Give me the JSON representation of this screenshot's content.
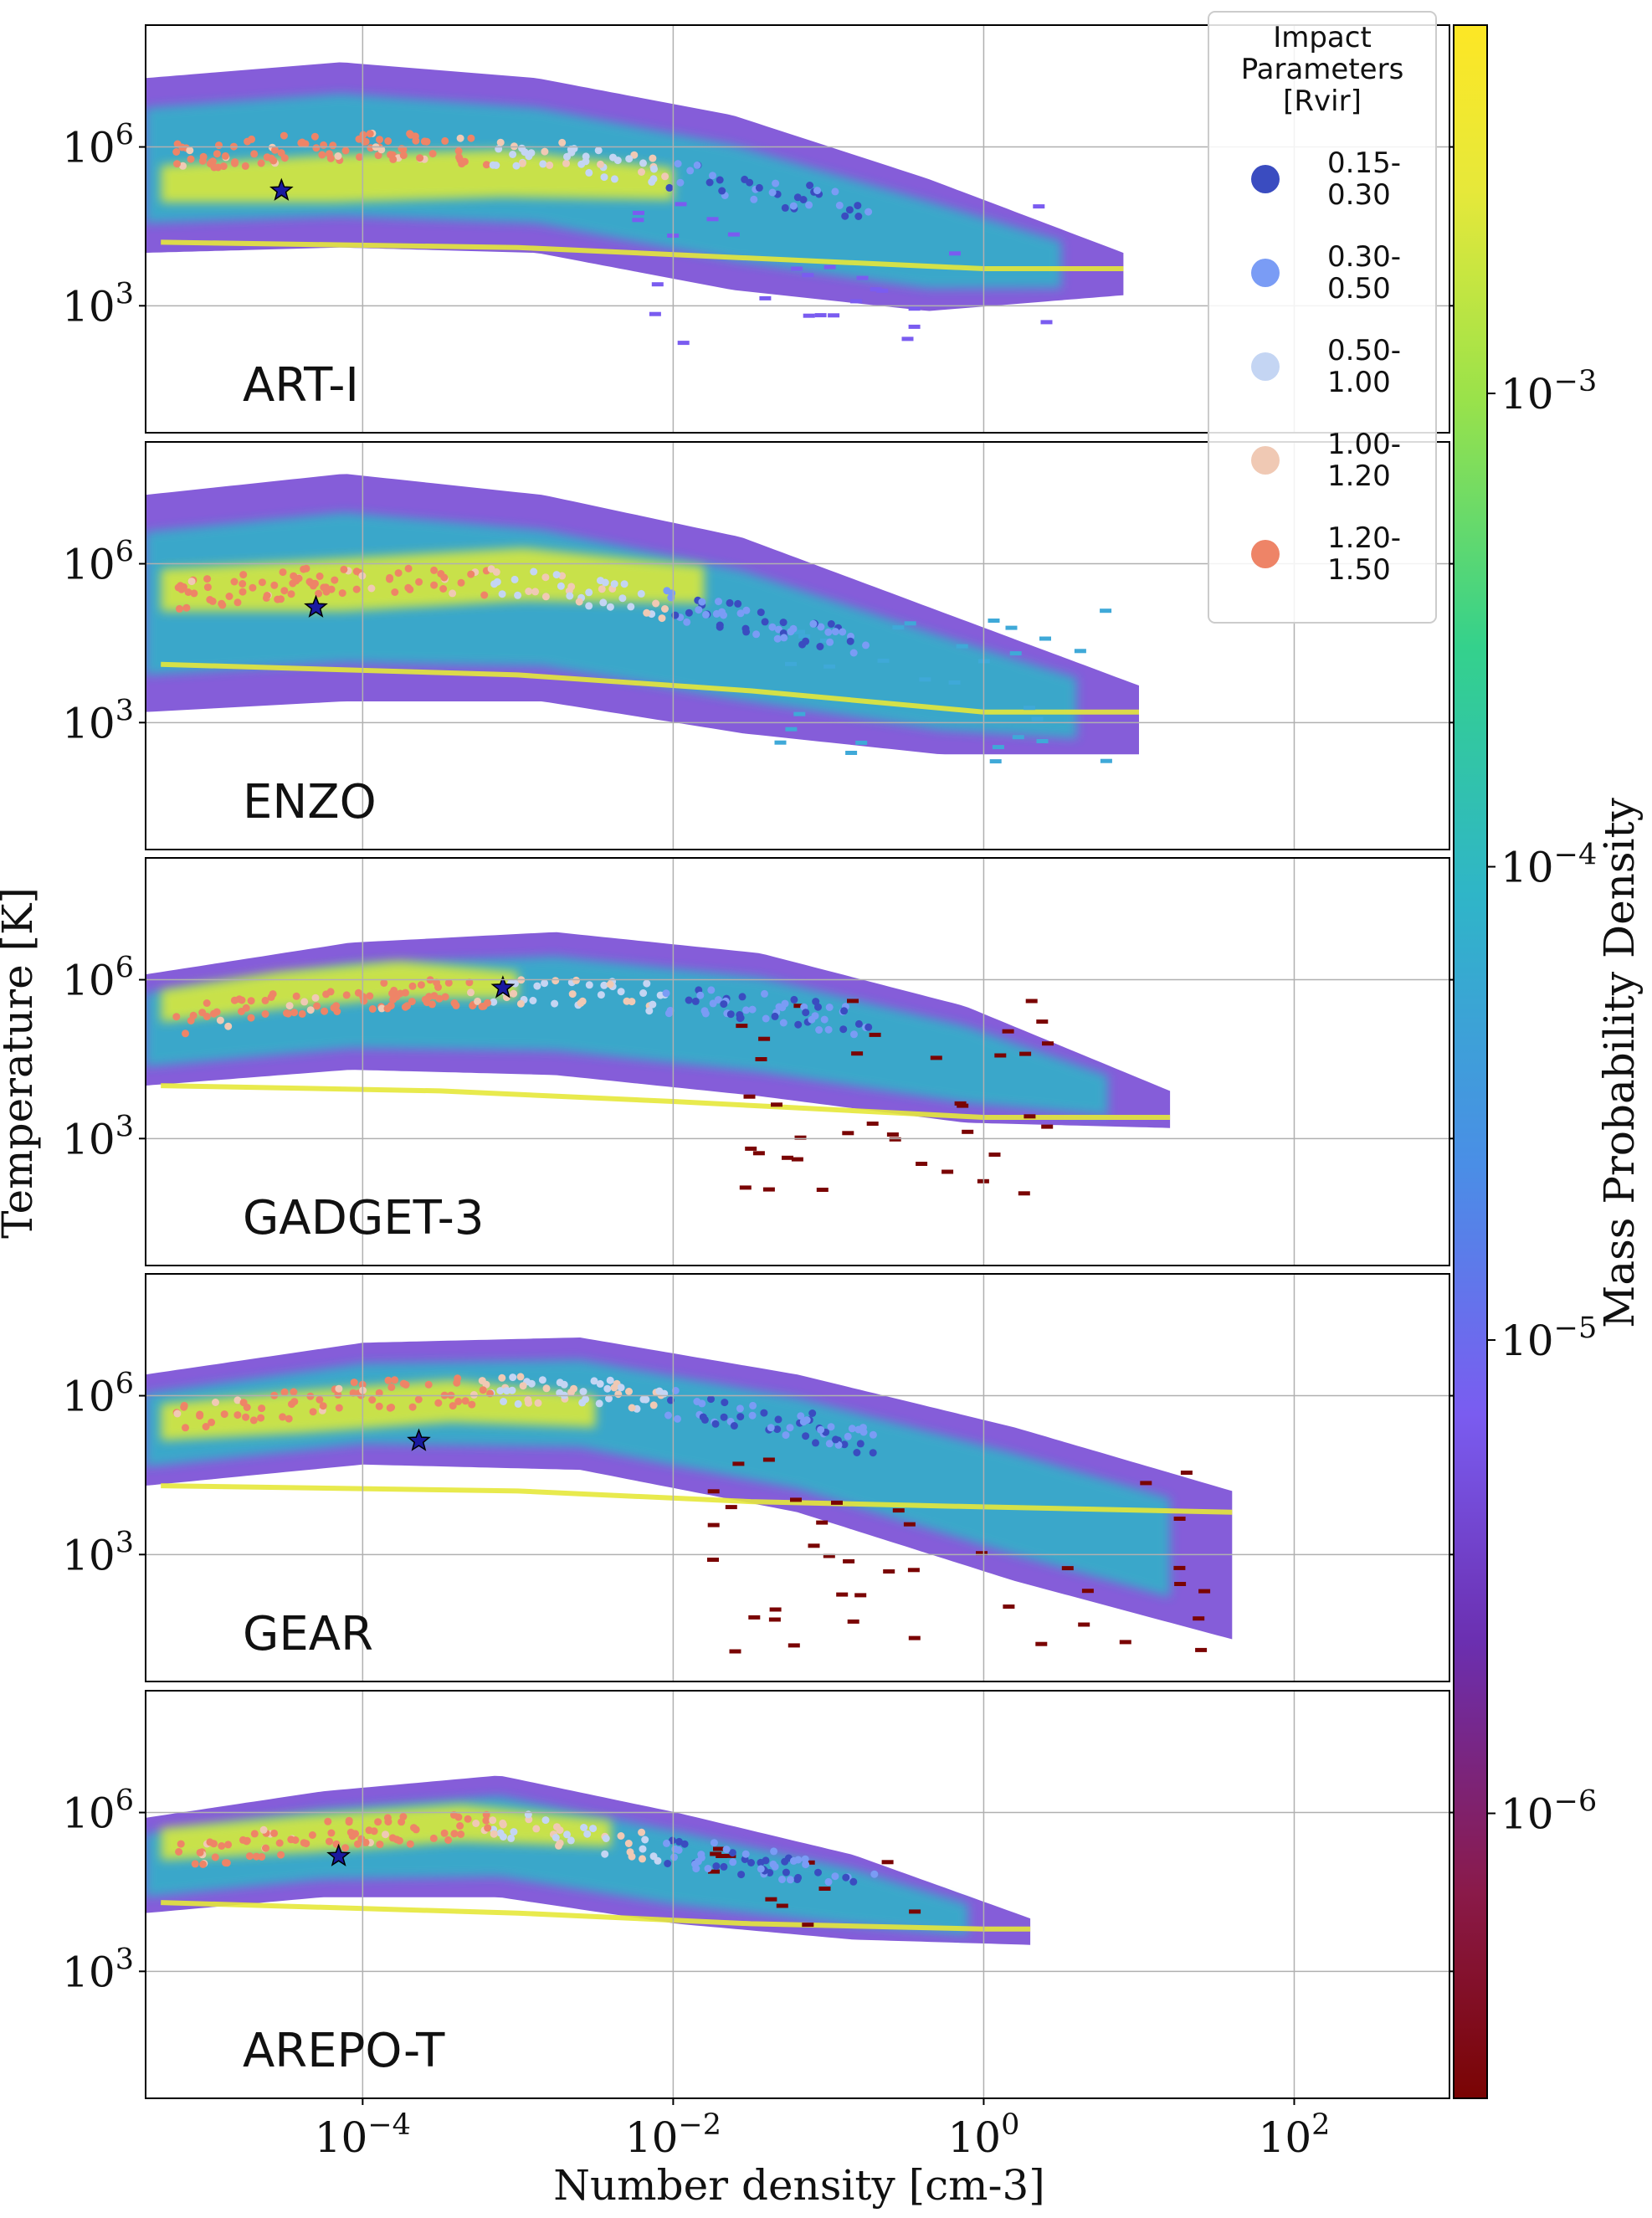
{
  "chart_data": {
    "type": "heatmap",
    "xlabel": "Number density [cm-3]",
    "ylabel": "Temperature [K]",
    "x_scale": "log",
    "y_scale": "log",
    "xlim": [
      4e-06,
      1000
    ],
    "ylim": [
      4,
      200000000
    ],
    "x_ticks": [
      {
        "value": 0.0001,
        "base": "10",
        "exp": "−4"
      },
      {
        "value": 0.01,
        "base": "10",
        "exp": "−2"
      },
      {
        "value": 1,
        "base": "10",
        "exp": "0"
      },
      {
        "value": 100,
        "base": "10",
        "exp": "2"
      }
    ],
    "y_ticks": [
      {
        "value": 1000,
        "base": "10",
        "exp": "3"
      },
      {
        "value": 1000000,
        "base": "10",
        "exp": "6"
      }
    ],
    "grid": true,
    "panels": [
      {
        "label": "ART-I",
        "star": {
          "x": 3e-05,
          "y": 150000
        }
      },
      {
        "label": "ENZO",
        "star": {
          "x": 5e-05,
          "y": 150000
        }
      },
      {
        "label": "GADGET-3",
        "star": {
          "x": 0.0008,
          "y": 700000
        }
      },
      {
        "label": "GEAR",
        "star": {
          "x": 0.00023,
          "y": 140000
        }
      },
      {
        "label": "AREPO-T",
        "star": {
          "x": 7e-05,
          "y": 150000
        }
      }
    ],
    "legend": {
      "title": "Impact\nParameters\n[Rvir]",
      "position": "top-right",
      "entries": [
        {
          "label": "0.15-\n0.30",
          "color": "#3a4cc0"
        },
        {
          "label": "0.30-\n0.50",
          "color": "#7a9cf5"
        },
        {
          "label": "0.50-\n1.00",
          "color": "#c4d5f3"
        },
        {
          "label": "1.00-\n1.20",
          "color": "#f0c9b4"
        },
        {
          "label": "1.20-\n1.50",
          "color": "#ee8467"
        }
      ]
    },
    "colorbar": {
      "label": "Mass Probability Density",
      "scale": "log",
      "range": [
        2.5e-07,
        0.006
      ],
      "colormap": "turbo-like (dark red to yellow)",
      "ticks": [
        {
          "value": 1e-06,
          "base": "10",
          "exp": "−6"
        },
        {
          "value": 1e-05,
          "base": "10",
          "exp": "−5"
        },
        {
          "value": 0.0001,
          "base": "10",
          "exp": "−4"
        },
        {
          "value": 0.001,
          "base": "10",
          "exp": "−3"
        }
      ]
    }
  }
}
